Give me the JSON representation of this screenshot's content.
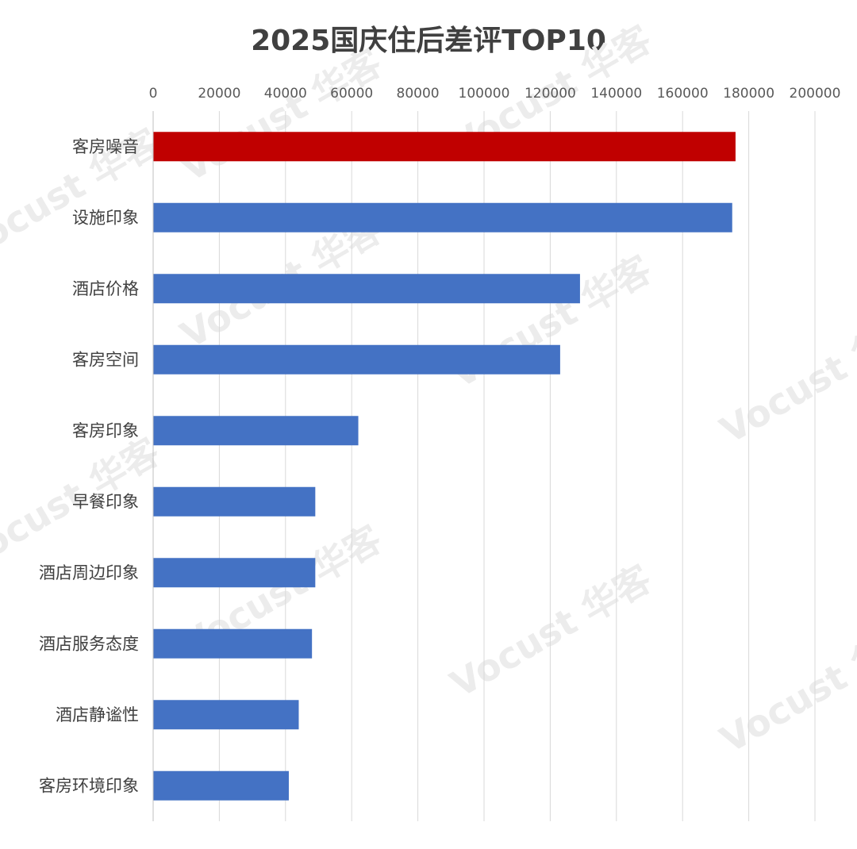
{
  "chart_data": {
    "type": "bar",
    "orientation": "horizontal",
    "title": "2025国庆住后差评TOP10",
    "xlabel": "",
    "ylabel": "",
    "xlim": [
      0,
      200000
    ],
    "x_ticks": [
      "0",
      "20000",
      "40000",
      "60000",
      "80000",
      "100000",
      "120000",
      "140000",
      "160000",
      "180000",
      "200000"
    ],
    "x_axis_position": "top",
    "grid": true,
    "legend": "none",
    "categories": [
      "客房噪音",
      "设施印象",
      "酒店价格",
      "客房空间",
      "客房印象",
      "早餐印象",
      "酒店周边印象",
      "酒店服务态度",
      "酒店静谧性",
      "客房环境印象"
    ],
    "values": [
      176000,
      175000,
      129000,
      123000,
      62000,
      49000,
      49000,
      48000,
      44000,
      41000
    ],
    "bar_colors": [
      "#c00000",
      "#4472c4",
      "#4472c4",
      "#4472c4",
      "#4472c4",
      "#4472c4",
      "#4472c4",
      "#4472c4",
      "#4472c4",
      "#4472c4"
    ],
    "colors": {
      "highlight": "#c00000",
      "default": "#4472c4",
      "grid": "#d9d9d9"
    }
  },
  "watermark": {
    "text": "Vocust 华客"
  }
}
